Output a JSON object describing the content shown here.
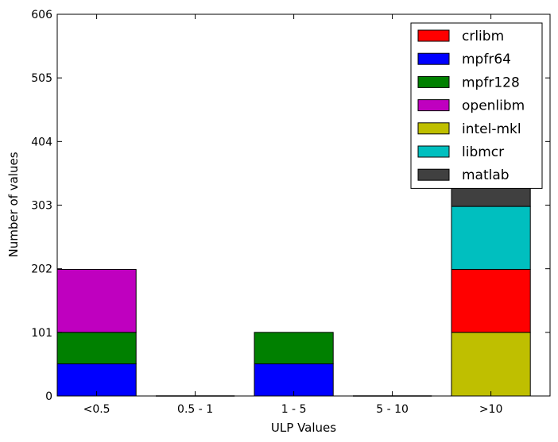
{
  "chart_data": {
    "type": "bar",
    "stacked": true,
    "categories": [
      "<0.5",
      "0.5 - 1",
      "1 - 5",
      "5 - 10",
      ">10"
    ],
    "xlabel": "ULP Values",
    "ylabel": "Number of values",
    "ylim": [
      0,
      606
    ],
    "yticks": [
      "0",
      "101",
      "202",
      "303",
      "404",
      "505",
      "606"
    ],
    "grid": false,
    "legend_position": "top-right",
    "series": [
      {
        "name": "crlibm",
        "color": "#ff0000",
        "values": [
          0,
          0,
          0,
          0,
          100
        ]
      },
      {
        "name": "mpfr64",
        "color": "#0000ff",
        "values": [
          51,
          0,
          51,
          0,
          0
        ]
      },
      {
        "name": "mpfr128",
        "color": "#008000",
        "values": [
          50,
          0,
          50,
          0,
          0
        ]
      },
      {
        "name": "openlibm",
        "color": "#bf00bf",
        "values": [
          100,
          0,
          0,
          0,
          0
        ]
      },
      {
        "name": "intel-mkl",
        "color": "#bfbf00",
        "values": [
          0,
          0,
          0,
          0,
          101
        ]
      },
      {
        "name": "libmcr",
        "color": "#00bfbf",
        "values": [
          0,
          0,
          0,
          0,
          100
        ]
      },
      {
        "name": "matlab",
        "color": "#404040",
        "values": [
          0,
          0,
          0,
          0,
          150
        ]
      }
    ],
    "stack_order": [
      "intel-mkl",
      "mpfr64",
      "mpfr128",
      "crlibm",
      "openlibm",
      "libmcr",
      "matlab"
    ]
  }
}
